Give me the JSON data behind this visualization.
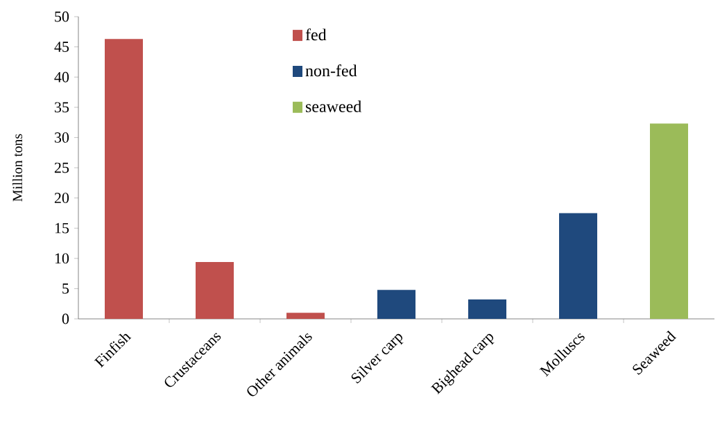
{
  "chart_data": {
    "type": "bar",
    "ylabel": "Million tons",
    "categories": [
      "Finfish",
      "Crustaceans",
      "Other animals",
      "Silver carp",
      "Bighead carp",
      "Molluscs",
      "Seaweed"
    ],
    "series": [
      {
        "name": "fed",
        "color": "#c0504d",
        "values": [
          46.3,
          9.4,
          1.0,
          null,
          null,
          null,
          null
        ]
      },
      {
        "name": "non-fed",
        "color": "#1f497d",
        "values": [
          null,
          null,
          null,
          4.8,
          3.2,
          17.5,
          null
        ]
      },
      {
        "name": "seaweed",
        "color": "#9bbb59",
        "values": [
          null,
          null,
          null,
          null,
          null,
          null,
          32.3
        ]
      }
    ],
    "ylim": [
      0,
      50
    ],
    "yticks": [
      0,
      5,
      10,
      15,
      20,
      25,
      30,
      35,
      40,
      45,
      50
    ],
    "legend": "top",
    "grid": false
  }
}
